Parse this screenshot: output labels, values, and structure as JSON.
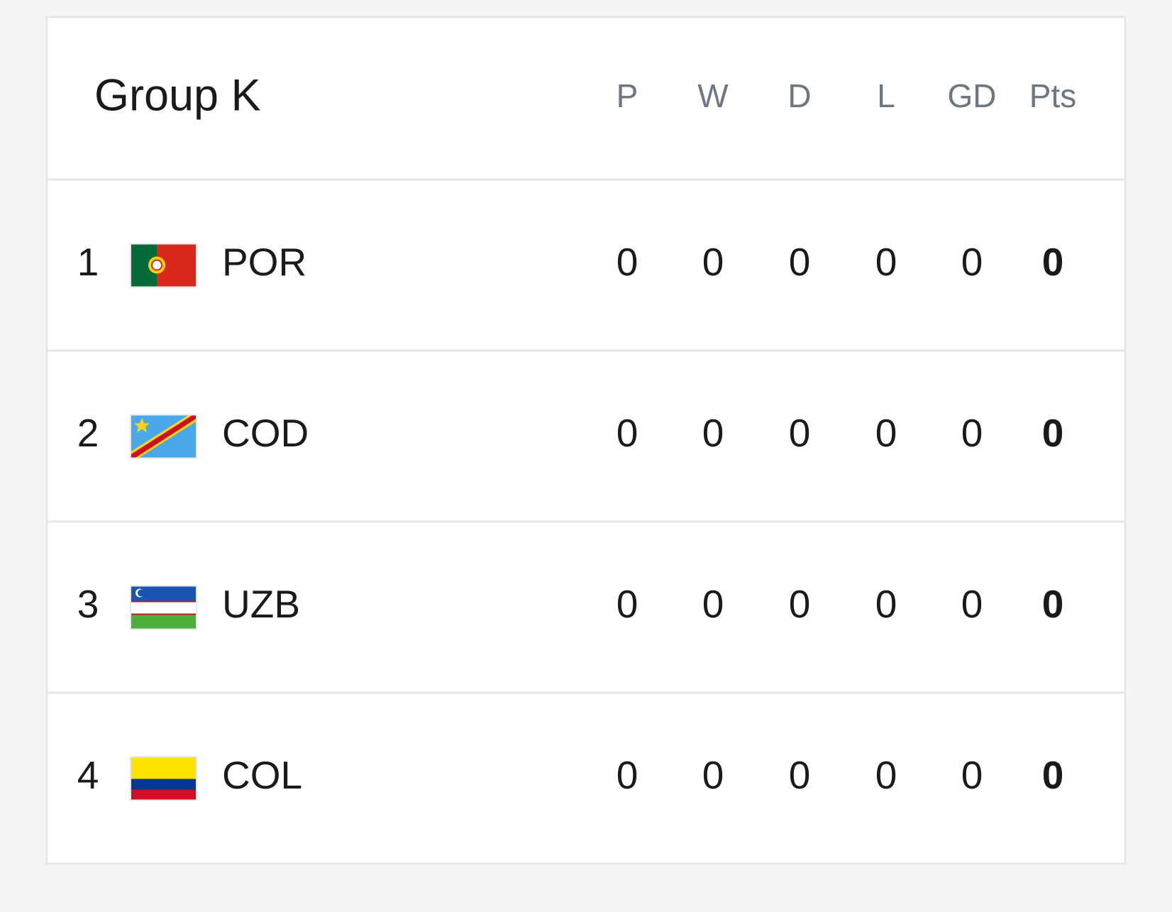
{
  "header": {
    "title": "Group K",
    "columns": [
      "P",
      "W",
      "D",
      "L",
      "GD",
      "Pts"
    ]
  },
  "table": {
    "rows": [
      {
        "rank": 1,
        "team": "POR",
        "stats": [
          0,
          0,
          0,
          0,
          0,
          0
        ]
      },
      {
        "rank": 2,
        "team": "COD",
        "stats": [
          0,
          0,
          0,
          0,
          0,
          0
        ]
      },
      {
        "rank": 3,
        "team": "UZB",
        "stats": [
          0,
          0,
          0,
          0,
          0,
          0
        ]
      },
      {
        "rank": 4,
        "team": "COL",
        "stats": [
          0,
          0,
          0,
          0,
          0,
          0
        ]
      }
    ]
  }
}
